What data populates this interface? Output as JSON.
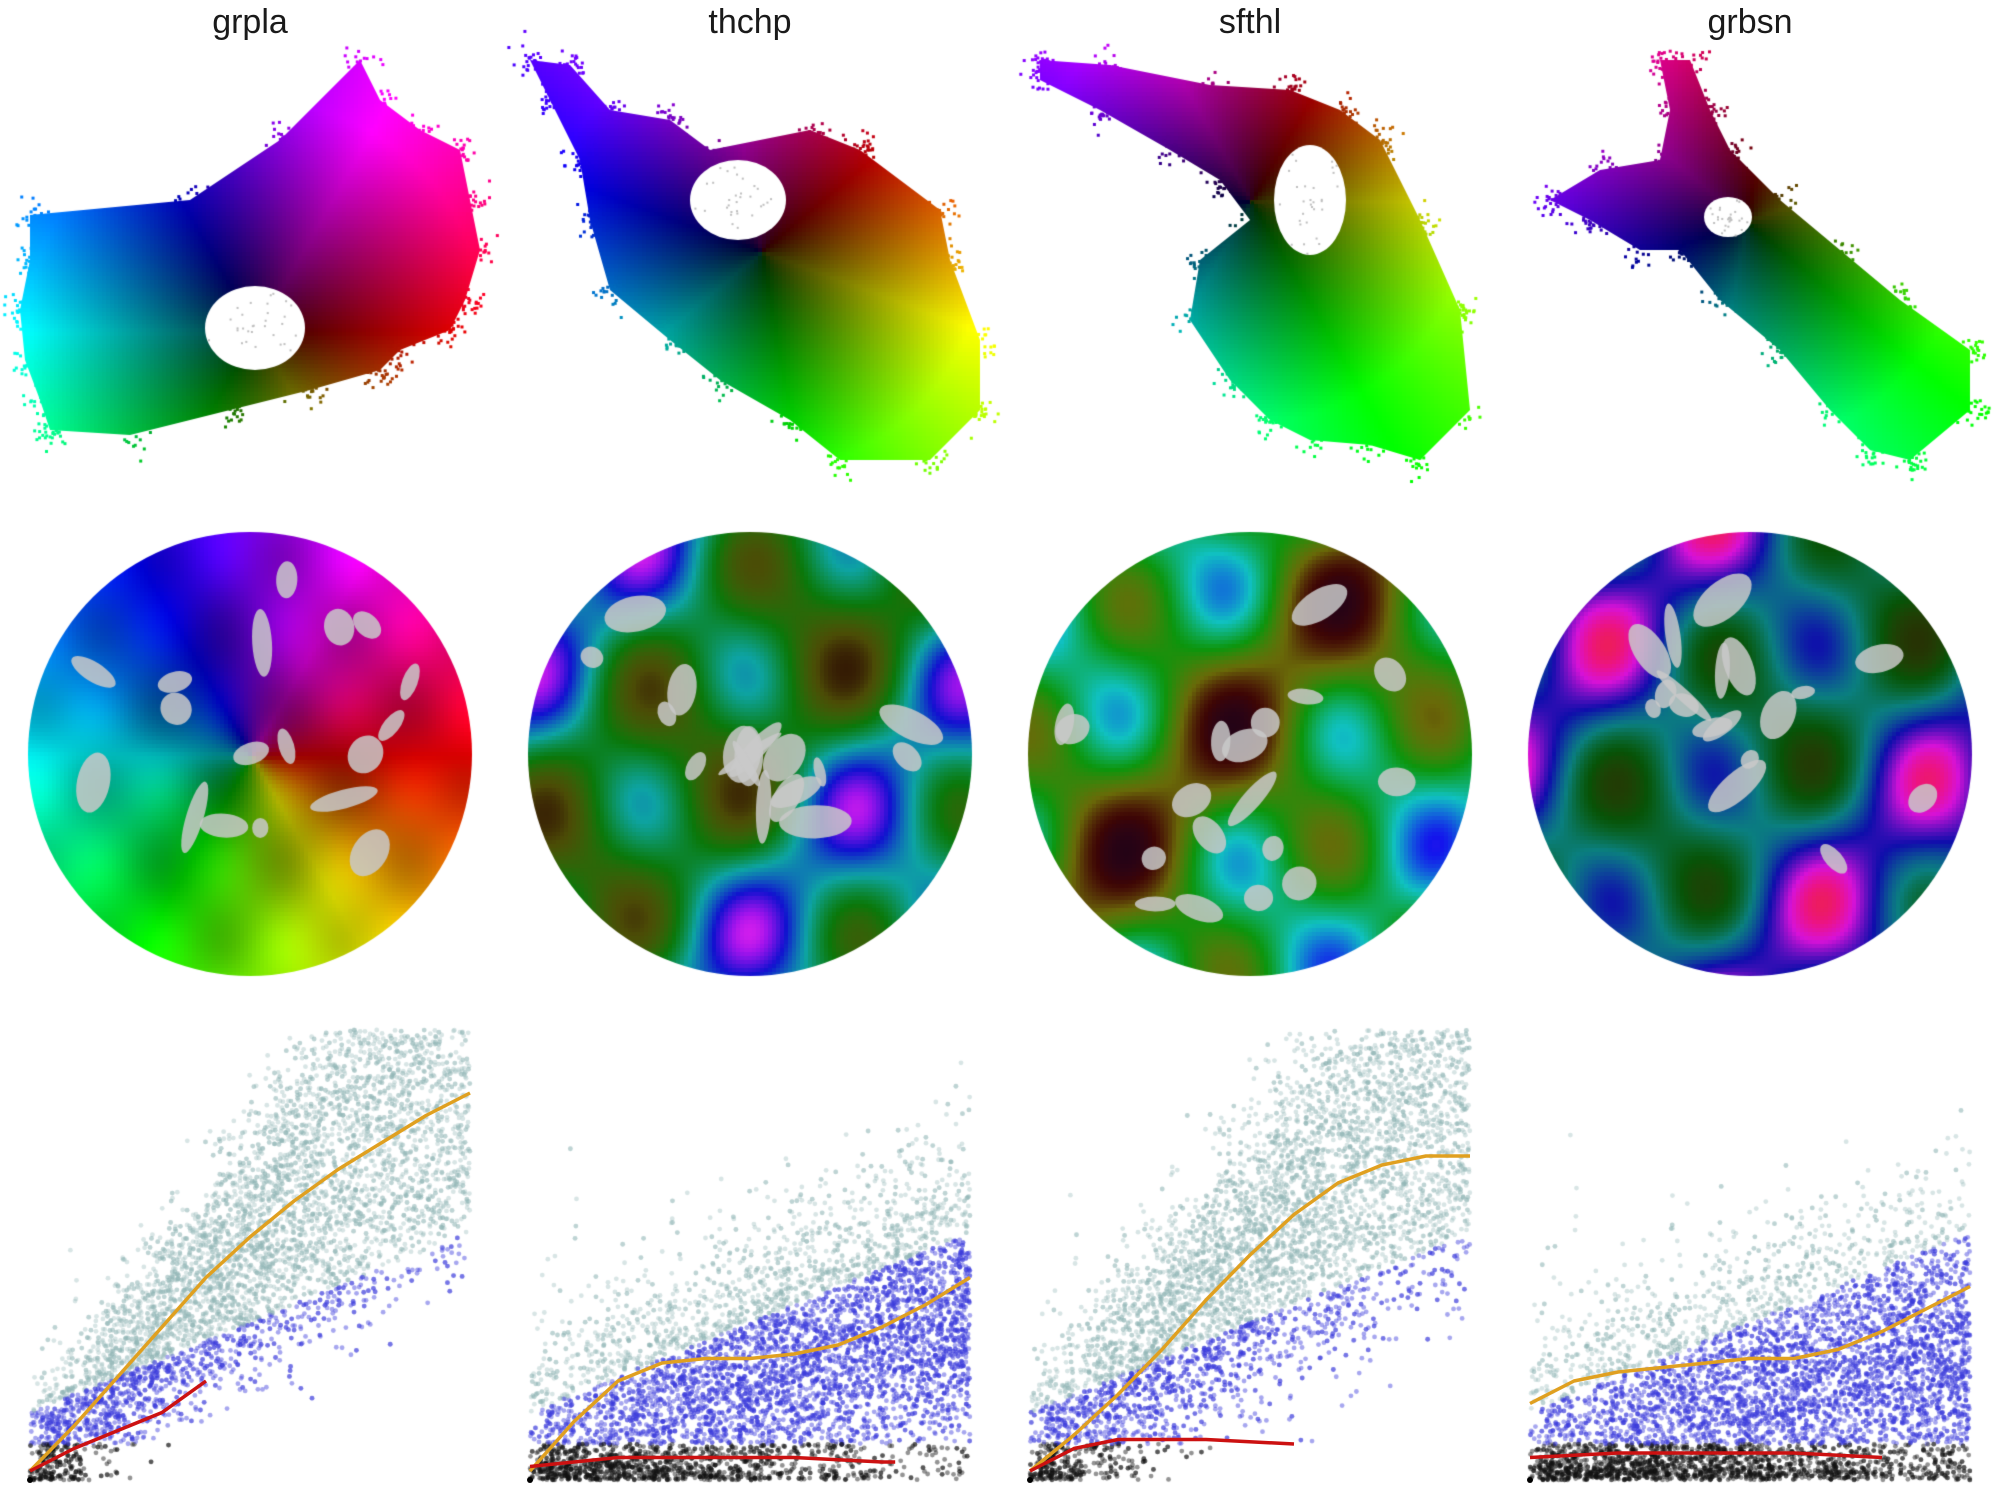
{
  "panels": [
    {
      "title": "grpla"
    },
    {
      "title": "thchp"
    },
    {
      "title": "sfthl"
    },
    {
      "title": "grbsn"
    }
  ],
  "colors": {
    "background": "#ffffff",
    "scatter_teal": "#8fb5b5",
    "scatter_blue": "#3c3cdc",
    "scatter_black": "#111111",
    "curve_orange": "#e0a020",
    "curve_red": "#cc1111",
    "gap_gray": "#c9c9c9"
  },
  "chart_data": [
    {
      "type": "scatter",
      "panel": "grpla",
      "xlim": [
        0,
        1
      ],
      "ylim": [
        0,
        1
      ],
      "grid": false,
      "curves": [
        {
          "color": "orange",
          "x": [
            0,
            0.1,
            0.2,
            0.3,
            0.4,
            0.5,
            0.6,
            0.7,
            0.8,
            0.9,
            1.0
          ],
          "y": [
            0.02,
            0.12,
            0.23,
            0.34,
            0.45,
            0.54,
            0.62,
            0.69,
            0.75,
            0.81,
            0.86
          ]
        },
        {
          "color": "red",
          "x": [
            0,
            0.1,
            0.2,
            0.3,
            0.4
          ],
          "y": [
            0.02,
            0.07,
            0.11,
            0.15,
            0.22
          ]
        }
      ]
    },
    {
      "type": "scatter",
      "panel": "thchp",
      "xlim": [
        0,
        1
      ],
      "ylim": [
        0,
        1
      ],
      "grid": false,
      "curves": [
        {
          "color": "orange",
          "x": [
            0,
            0.1,
            0.2,
            0.3,
            0.4,
            0.5,
            0.6,
            0.7,
            0.8,
            0.9,
            1.0
          ],
          "y": [
            0.02,
            0.13,
            0.22,
            0.26,
            0.27,
            0.27,
            0.28,
            0.3,
            0.34,
            0.39,
            0.45
          ]
        },
        {
          "color": "red",
          "x": [
            0,
            0.2,
            0.4,
            0.6,
            0.8,
            0.83
          ],
          "y": [
            0.03,
            0.05,
            0.05,
            0.05,
            0.04,
            0.04
          ]
        }
      ]
    },
    {
      "type": "scatter",
      "panel": "sfthl",
      "xlim": [
        0,
        1
      ],
      "ylim": [
        0,
        1
      ],
      "grid": false,
      "curves": [
        {
          "color": "orange",
          "x": [
            0,
            0.1,
            0.2,
            0.3,
            0.4,
            0.5,
            0.6,
            0.7,
            0.8,
            0.9,
            1.0
          ],
          "y": [
            0.02,
            0.1,
            0.19,
            0.29,
            0.4,
            0.5,
            0.59,
            0.66,
            0.7,
            0.72,
            0.72
          ]
        },
        {
          "color": "red",
          "x": [
            0,
            0.1,
            0.2,
            0.4,
            0.6
          ],
          "y": [
            0.02,
            0.07,
            0.09,
            0.09,
            0.08
          ]
        }
      ]
    },
    {
      "type": "scatter",
      "panel": "grbsn",
      "xlim": [
        0,
        1
      ],
      "ylim": [
        0,
        1
      ],
      "grid": false,
      "curves": [
        {
          "color": "orange",
          "x": [
            0,
            0.1,
            0.2,
            0.3,
            0.4,
            0.5,
            0.6,
            0.7,
            0.8,
            0.9,
            1.0
          ],
          "y": [
            0.17,
            0.22,
            0.24,
            0.25,
            0.26,
            0.27,
            0.27,
            0.29,
            0.33,
            0.38,
            0.43
          ]
        },
        {
          "color": "red",
          "x": [
            0,
            0.2,
            0.4,
            0.6,
            0.8
          ],
          "y": [
            0.05,
            0.06,
            0.06,
            0.06,
            0.05
          ]
        }
      ]
    }
  ]
}
